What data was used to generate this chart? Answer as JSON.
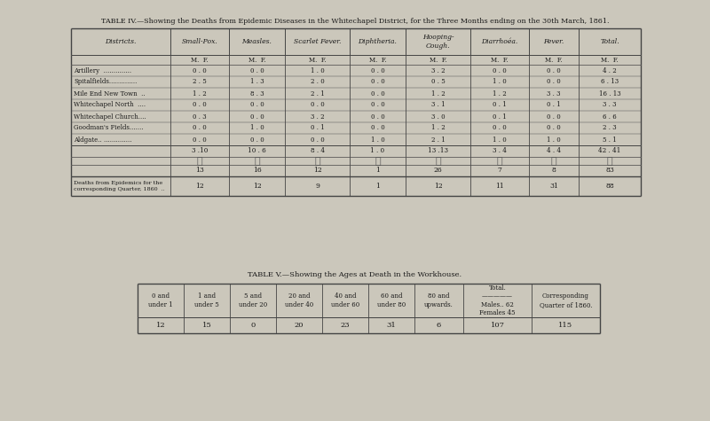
{
  "bg_color": "#cbc7bb",
  "title4": "TABLE IV.—Showing the Deaths from Epidemic Diseases in the Whitechapel District, for the Three Months ending on the 30th March, 1861.",
  "title5": "TABLE V.—Showing the Ages at Death in the Workhouse.",
  "t4_col_headers": [
    "Districts.",
    "Small-Pox.",
    "Measles.",
    "Scarlet Fever.",
    "Diphtheria.",
    "Hooping-\nCough.",
    "Diarrhoéa.",
    "Fever.",
    "Total."
  ],
  "t4_mf_row": [
    "",
    "M.  F.",
    "M.  F.",
    "M.  F.",
    "M.  F.",
    "M.  F.",
    "M.  F.",
    "M.  F.",
    "M.  F."
  ],
  "t4_districts": [
    "Artillery  ..............",
    "Spitalfields..............",
    "Mile End New Town  ..",
    "Whitechapel North  ....",
    "Whitechapel Church....",
    "Goodman's Fields.......",
    "Aldgate.. .............."
  ],
  "t4_data": [
    [
      "0 . 0",
      "0 . 0",
      "1 . 0",
      "0 . 0",
      "3 . 2",
      "0 . 0",
      "0 . 0",
      "4 . 2"
    ],
    [
      "2 . 5",
      "1 . 3",
      "2 . 0",
      "0 . 0",
      "0 . 5",
      "1 . 0",
      "0 . 0",
      "6 . 13"
    ],
    [
      "1 . 2",
      "8 . 3",
      "2 . 1",
      "0 . 0",
      "1 . 2",
      "1 . 2",
      "3 . 3",
      "16 . 13"
    ],
    [
      "0 . 0",
      "0 . 0",
      "0 . 0",
      "0 . 0",
      "3 . 1",
      "0 . 1",
      "0 . 1",
      "3 . 3"
    ],
    [
      "0 . 3",
      "0 . 0",
      "3 . 2",
      "0 . 0",
      "3 . 0",
      "0 . 1",
      "0 . 0",
      "6 . 6"
    ],
    [
      "0 . 0",
      "1 . 0",
      "0 . 1",
      "0 . 0",
      "1 . 2",
      "0 . 0",
      "0 . 0",
      "2 . 3"
    ],
    [
      "0 . 0",
      "0 . 0",
      "0 . 0",
      "1 . 0",
      "2 . 1",
      "1 . 0",
      "1 . 0",
      "5 . 1"
    ]
  ],
  "t4_subtotal_mf": [
    "3 .10",
    "10 . 6",
    "8 . 4",
    "1 . 0",
    "13 .13",
    "3 . 4",
    "4 . 4",
    "42 . 41"
  ],
  "t4_subtotal": [
    "13",
    "16",
    "12",
    "1",
    "26",
    "7",
    "8",
    "83"
  ],
  "t4_prev_label": "Deaths from Epidemics for the\ncorresponding Quarter, 1860  ..",
  "t4_prev": [
    "12",
    "12",
    "9",
    "1",
    "12",
    "11",
    "31",
    "88"
  ],
  "t5_headers": [
    "0 and\nunder 1",
    "1 and\nunder 5",
    "5 and\nunder 20",
    "20 and\nunder 40",
    "40 and\nunder 60",
    "60 and\nunder 80",
    "80 and\nupwards.",
    "Total.\n—————\nMales.. 62\nFemales 45",
    "Corresponding\nQuarter of 1860."
  ],
  "t5_data": [
    "12",
    "15",
    "0",
    "20",
    "23",
    "31",
    "6",
    "107",
    "115"
  ]
}
